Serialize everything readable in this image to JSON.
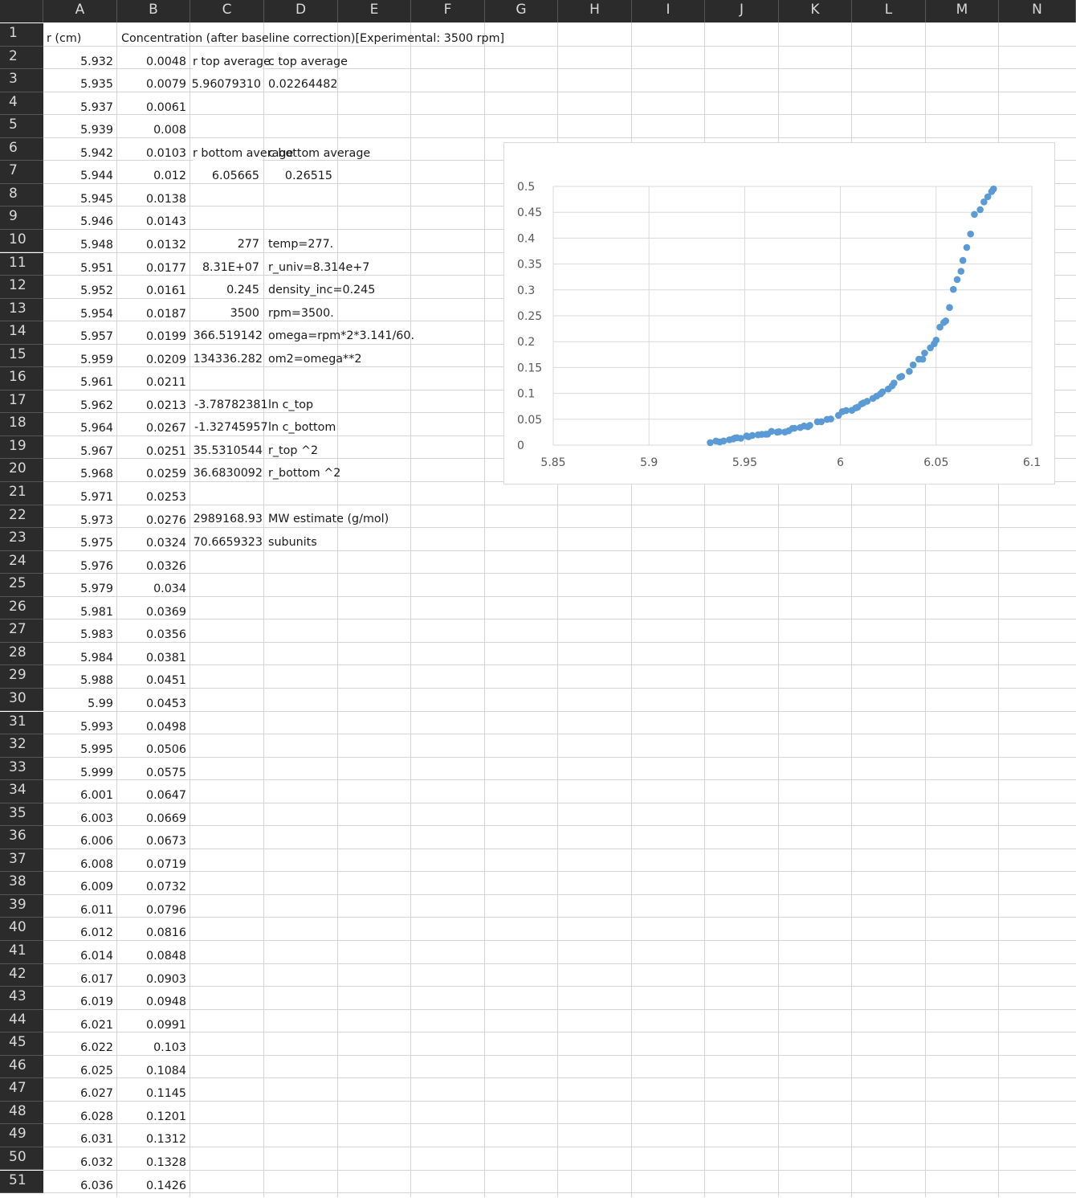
{
  "columns": [
    "A",
    "B",
    "C",
    "D",
    "E",
    "F",
    "G",
    "H",
    "I",
    "J",
    "K",
    "L",
    "M",
    "N"
  ],
  "rows": [
    "1",
    "2",
    "3",
    "4",
    "5",
    "6",
    "7",
    "8",
    "9",
    "10",
    "11",
    "12",
    "13",
    "14",
    "15",
    "16",
    "17",
    "18",
    "19",
    "20",
    "21",
    "22",
    "23",
    "24",
    "25",
    "26",
    "27",
    "28",
    "29",
    "30",
    "31",
    "32",
    "33",
    "34",
    "35",
    "36",
    "37",
    "38",
    "39",
    "40",
    "41",
    "42",
    "43",
    "44",
    "45",
    "46",
    "47",
    "48",
    "49",
    "50",
    "51"
  ],
  "headers": {
    "r_label": "r (cm)",
    "conc_label": "Concentration (after baseline correction)[Experimental: 3500 rpm]"
  },
  "col_a": [
    "5.932",
    "5.935",
    "5.937",
    "5.939",
    "5.942",
    "5.944",
    "5.945",
    "5.946",
    "5.948",
    "5.951",
    "5.952",
    "5.954",
    "5.957",
    "5.959",
    "5.961",
    "5.962",
    "5.964",
    "5.967",
    "5.968",
    "5.971",
    "5.973",
    "5.975",
    "5.976",
    "5.979",
    "5.981",
    "5.983",
    "5.984",
    "5.988",
    "5.99",
    "5.993",
    "5.995",
    "5.999",
    "6.001",
    "6.003",
    "6.006",
    "6.008",
    "6.009",
    "6.011",
    "6.012",
    "6.014",
    "6.017",
    "6.019",
    "6.021",
    "6.022",
    "6.025",
    "6.027",
    "6.028",
    "6.031",
    "6.032",
    "6.036"
  ],
  "col_b": [
    "0.0048",
    "0.0079",
    "0.0061",
    "0.008",
    "0.0103",
    "0.012",
    "0.0138",
    "0.0143",
    "0.0132",
    "0.0177",
    "0.0161",
    "0.0187",
    "0.0199",
    "0.0209",
    "0.0211",
    "0.0213",
    "0.0267",
    "0.0251",
    "0.0259",
    "0.0253",
    "0.0276",
    "0.0324",
    "0.0326",
    "0.034",
    "0.0369",
    "0.0356",
    "0.0381",
    "0.0451",
    "0.0453",
    "0.0498",
    "0.0506",
    "0.0575",
    "0.0647",
    "0.0669",
    "0.0673",
    "0.0719",
    "0.0732",
    "0.0796",
    "0.0816",
    "0.0848",
    "0.0903",
    "0.0948",
    "0.0991",
    "0.103",
    "0.1084",
    "0.1145",
    "0.1201",
    "0.1312",
    "0.1328",
    "0.1426"
  ],
  "calc": {
    "c2": "r top average",
    "d2": "c top average",
    "c3": "5.96079310",
    "d3": "0.02264482",
    "c6": "r bottom average",
    "d6": "c bottom average",
    "c7": "6.05665",
    "d7": "0.26515",
    "c10": "277",
    "d10": "temp=277.",
    "c11": "8.31E+07",
    "d11": "r_univ=8.314e+7",
    "c12": "0.245",
    "d12": "density_inc=0.245",
    "c13": "3500",
    "d13": "rpm=3500.",
    "c14": "366.519142",
    "d14": "omega=rpm*2*3.141/60.",
    "c15": "134336.282",
    "d15": "om2=omega**2",
    "c17": "-3.78782381",
    "d17": "ln c_top",
    "c18": "-1.32745957",
    "d18": "ln c_bottom",
    "c19": "35.5310544",
    "d19": "r_top ^2",
    "c20": "36.6830092",
    "d20": "r_bottom ^2",
    "c22": "2989168.93",
    "d22": "MW estimate (g/mol)",
    "c23": "70.6659323",
    "d23": "subunits"
  },
  "chart_data": {
    "type": "scatter",
    "title": "",
    "xlabel": "",
    "ylabel": "",
    "xlim": [
      5.85,
      6.1
    ],
    "ylim": [
      0,
      0.5
    ],
    "x_ticks": [
      "5.85",
      "5.9",
      "5.95",
      "6",
      "6.05",
      "6.1"
    ],
    "y_ticks": [
      "0",
      "0.05",
      "0.1",
      "0.15",
      "0.2",
      "0.25",
      "0.3",
      "0.35",
      "0.4",
      "0.45",
      "0.5"
    ],
    "grid": true,
    "marker_color": "#5b9bd5",
    "series": [
      {
        "x": [
          5.932,
          5.935,
          5.937,
          5.939,
          5.942,
          5.944,
          5.945,
          5.946,
          5.948,
          5.951,
          5.952,
          5.954,
          5.957,
          5.959,
          5.961,
          5.962,
          5.964,
          5.967,
          5.968,
          5.971,
          5.973,
          5.975,
          5.976,
          5.979,
          5.981,
          5.983,
          5.984,
          5.988,
          5.99,
          5.993,
          5.995,
          5.999,
          6.001,
          6.003,
          6.006,
          6.008,
          6.009,
          6.011,
          6.012,
          6.014,
          6.017,
          6.019,
          6.021,
          6.022,
          6.025,
          6.027,
          6.028,
          6.031,
          6.032,
          6.036,
          6.038,
          6.041,
          6.043,
          6.044,
          6.047,
          6.049,
          6.05,
          6.052,
          6.054,
          6.055,
          6.057,
          6.059,
          6.061,
          6.063,
          6.064,
          6.066,
          6.068,
          6.07,
          6.073,
          6.075,
          6.077,
          6.079,
          6.08
        ],
        "y": [
          0.0048,
          0.0079,
          0.0061,
          0.008,
          0.0103,
          0.012,
          0.0138,
          0.0143,
          0.0132,
          0.0177,
          0.0161,
          0.0187,
          0.0199,
          0.0209,
          0.0211,
          0.0213,
          0.0267,
          0.0251,
          0.0259,
          0.0253,
          0.0276,
          0.0324,
          0.0326,
          0.034,
          0.0369,
          0.0356,
          0.0381,
          0.0451,
          0.0453,
          0.0498,
          0.0506,
          0.0575,
          0.0647,
          0.0669,
          0.0673,
          0.0719,
          0.0732,
          0.0796,
          0.0816,
          0.0848,
          0.0903,
          0.0948,
          0.0991,
          0.103,
          0.1084,
          0.1145,
          0.1201,
          0.1312,
          0.1328,
          0.1426,
          0.155,
          0.166,
          0.166,
          0.178,
          0.188,
          0.196,
          0.203,
          0.228,
          0.237,
          0.24,
          0.266,
          0.301,
          0.32,
          0.336,
          0.357,
          0.382,
          0.408,
          0.446,
          0.455,
          0.47,
          0.48,
          0.49,
          0.495
        ]
      }
    ]
  }
}
